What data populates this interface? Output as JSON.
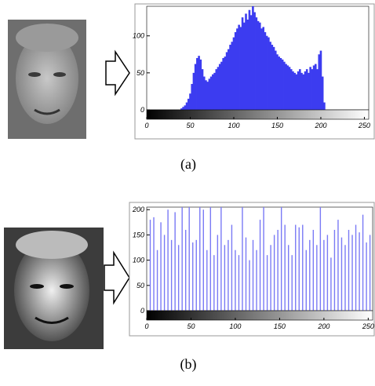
{
  "chart_data": [
    {
      "type": "bar",
      "caption": "(a)",
      "color": "#3c3cf0",
      "x": [
        40,
        42,
        44,
        46,
        48,
        50,
        52,
        54,
        56,
        58,
        60,
        62,
        64,
        66,
        68,
        70,
        72,
        74,
        76,
        78,
        80,
        82,
        84,
        86,
        88,
        90,
        92,
        94,
        96,
        98,
        100,
        102,
        104,
        106,
        108,
        110,
        112,
        114,
        116,
        118,
        120,
        122,
        124,
        126,
        128,
        130,
        132,
        134,
        136,
        138,
        140,
        142,
        144,
        146,
        148,
        150,
        152,
        154,
        156,
        158,
        160,
        162,
        164,
        166,
        168,
        170,
        172,
        174,
        176,
        178,
        180,
        182,
        184,
        186,
        188,
        190,
        192,
        194,
        196,
        198,
        200,
        202,
        204
      ],
      "values": [
        2,
        4,
        6,
        10,
        15,
        22,
        35,
        50,
        62,
        70,
        73,
        68,
        55,
        45,
        40,
        38,
        42,
        45,
        48,
        50,
        55,
        58,
        62,
        65,
        70,
        72,
        78,
        82,
        88,
        92,
        98,
        105,
        110,
        115,
        112,
        125,
        118,
        130,
        122,
        135,
        128,
        140,
        132,
        125,
        120,
        118,
        110,
        112,
        105,
        100,
        98,
        92,
        88,
        85,
        80,
        75,
        72,
        70,
        68,
        65,
        62,
        60,
        58,
        55,
        52,
        50,
        48,
        52,
        55,
        50,
        48,
        52,
        55,
        50,
        58,
        55,
        60,
        62,
        55,
        75,
        80,
        45,
        10
      ],
      "xlim": [
        0,
        255
      ],
      "ylim": [
        0,
        140
      ],
      "xticks": [
        0,
        50,
        100,
        150,
        200,
        250
      ],
      "yticks": [
        0,
        50,
        100
      ]
    },
    {
      "type": "bar",
      "caption": "(b)",
      "color": "#7a7af5",
      "x": [
        4,
        8,
        12,
        16,
        20,
        24,
        28,
        32,
        36,
        40,
        44,
        48,
        52,
        56,
        60,
        64,
        68,
        72,
        76,
        80,
        84,
        88,
        92,
        96,
        100,
        104,
        108,
        112,
        116,
        120,
        124,
        128,
        132,
        136,
        140,
        144,
        148,
        152,
        156,
        160,
        164,
        168,
        172,
        176,
        180,
        184,
        188,
        192,
        196,
        200,
        204,
        208,
        212,
        216,
        220,
        224,
        228,
        232,
        236,
        240,
        244,
        248,
        252
      ],
      "values": [
        180,
        185,
        120,
        175,
        150,
        200,
        140,
        195,
        130,
        205,
        160,
        205,
        135,
        140,
        205,
        200,
        120,
        205,
        110,
        150,
        205,
        130,
        140,
        170,
        120,
        110,
        205,
        145,
        100,
        140,
        120,
        180,
        205,
        110,
        130,
        150,
        160,
        205,
        170,
        130,
        110,
        170,
        165,
        170,
        120,
        140,
        160,
        130,
        205,
        140,
        150,
        105,
        160,
        180,
        145,
        130,
        160,
        150,
        170,
        155,
        190,
        135,
        150
      ],
      "xlim": [
        0,
        255
      ],
      "ylim": [
        0,
        205
      ],
      "xticks": [
        0,
        50,
        100,
        150,
        200,
        250
      ],
      "yticks": [
        0,
        50,
        100,
        150,
        200
      ]
    }
  ]
}
